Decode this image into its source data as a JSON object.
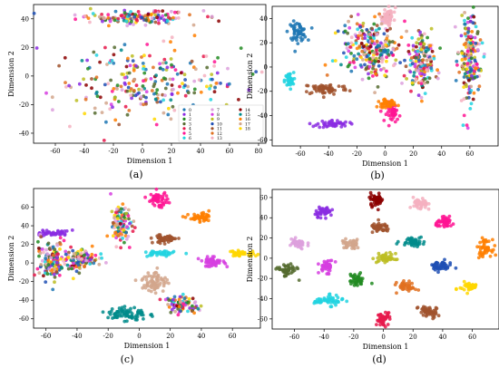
{
  "chart_data": [
    {
      "type": "scatter",
      "panel_label": "(a)",
      "xlabel": "Dimension 1",
      "ylabel": "Dimension 2",
      "xlim": [
        -75,
        85
      ],
      "ylim": [
        -47,
        50
      ],
      "xticks": [
        -60,
        -40,
        -20,
        0,
        20,
        40,
        60,
        80
      ],
      "yticks": [
        -40,
        -20,
        0,
        20,
        40
      ],
      "legend": {
        "placement": "bottom-right",
        "entries": [
          "0",
          "1",
          "2",
          "3",
          "4",
          "5",
          "6",
          "7",
          "8",
          "9",
          "10",
          "11",
          "12",
          "13",
          "14",
          "15",
          "16",
          "17",
          "18"
        ]
      },
      "clusters": [
        {
          "label": "band-top",
          "cx": -5,
          "cy": 41,
          "sx": 25,
          "sy": 3,
          "mixed": true
        },
        {
          "label": "main-mass",
          "cx": 5,
          "cy": -5,
          "sx": 38,
          "sy": 15,
          "mixed": true
        }
      ]
    },
    {
      "type": "scatter",
      "panel_label": "(b)",
      "xlabel": "Dimension 1",
      "ylabel": "Dimension 2",
      "xlim": [
        -80,
        80
      ],
      "ylim": [
        -65,
        50
      ],
      "xticks": [
        -60,
        -40,
        -20,
        0,
        20,
        40,
        60
      ],
      "yticks": [
        -60,
        -40,
        -20,
        0,
        20,
        40
      ],
      "clusters": [
        {
          "class": 0,
          "cx": -62,
          "cy": 29,
          "sx": 4,
          "sy": 5
        },
        {
          "class": 6,
          "cx": -68,
          "cy": -11,
          "sx": 2,
          "sy": 4
        },
        {
          "class": 11,
          "cx": -42,
          "cy": -18,
          "sx": 10,
          "sy": 3
        },
        {
          "class": 1,
          "cx": -37,
          "cy": -47,
          "sx": 7,
          "sy": 2
        },
        {
          "class": 9,
          "cx": -10,
          "cy": 15,
          "sx": 12,
          "sy": 15,
          "mixed": true
        },
        {
          "class": 5,
          "cx": 6,
          "cy": -37,
          "sx": 3,
          "sy": 5
        },
        {
          "class": 16,
          "cx": 1,
          "cy": -30,
          "sx": 4,
          "sy": 2
        },
        {
          "class": 12,
          "cx": 25,
          "cy": 4,
          "sx": 6,
          "sy": 15,
          "mixed": true
        },
        {
          "class": 10,
          "cx": 60,
          "cy": 5,
          "sx": 5,
          "sy": 22,
          "mixed": true
        },
        {
          "class": 13,
          "cx": 2,
          "cy": 42,
          "sx": 3,
          "sy": 5
        }
      ]
    },
    {
      "type": "scatter",
      "panel_label": "(c)",
      "xlabel": "Dimension 1",
      "ylabel": "Dimension 2",
      "xlim": [
        -68,
        78
      ],
      "ylim": [
        -70,
        80
      ],
      "xticks": [
        -60,
        -40,
        -20,
        0,
        20,
        40,
        60
      ],
      "yticks": [
        -60,
        -40,
        -20,
        0,
        20,
        40,
        60
      ],
      "clusters": [
        {
          "class": 1,
          "cx": -55,
          "cy": 32,
          "sx": 6,
          "sy": 2
        },
        {
          "class": 3,
          "cx": -56,
          "cy": 4,
          "sx": 6,
          "sy": 12,
          "mixed": true
        },
        {
          "class": 9,
          "cx": -38,
          "cy": 4,
          "sx": 7,
          "sy": 7,
          "mixed": true
        },
        {
          "class": 14,
          "cx": -12,
          "cy": 40,
          "sx": 4,
          "sy": 12,
          "mixed": true
        },
        {
          "class": 5,
          "cx": 12,
          "cy": 68,
          "sx": 4,
          "sy": 5
        },
        {
          "class": 16,
          "cx": 40,
          "cy": 48,
          "sx": 5,
          "sy": 3
        },
        {
          "class": 11,
          "cx": 17,
          "cy": 26,
          "sx": 5,
          "sy": 3
        },
        {
          "class": 6,
          "cx": 13,
          "cy": 10,
          "sx": 6,
          "sy": 2
        },
        {
          "class": 8,
          "cx": 47,
          "cy": 1,
          "sx": 5,
          "sy": 3
        },
        {
          "class": 18,
          "cx": 66,
          "cy": 10,
          "sx": 6,
          "sy": 2
        },
        {
          "class": 17,
          "cx": 10,
          "cy": -20,
          "sx": 5,
          "sy": 7
        },
        {
          "class": 10,
          "cx": 28,
          "cy": -45,
          "sx": 6,
          "sy": 6,
          "mixed": true
        },
        {
          "class": 15,
          "cx": -8,
          "cy": -55,
          "sx": 8,
          "sy": 5
        }
      ]
    },
    {
      "type": "scatter",
      "panel_label": "(d)",
      "xlabel": "Dimension 1",
      "ylabel": "Dimension 2",
      "xlim": [
        -75,
        78
      ],
      "ylim": [
        -70,
        68
      ],
      "xticks": [
        -60,
        -40,
        -20,
        0,
        20,
        40,
        60
      ],
      "yticks": [
        -60,
        -40,
        -20,
        0,
        20,
        40,
        60
      ],
      "clusters": [
        {
          "class": 14,
          "cx": -5,
          "cy": 58,
          "sx": 3,
          "sy": 4
        },
        {
          "class": 13,
          "cx": 25,
          "cy": 53,
          "sx": 3,
          "sy": 4
        },
        {
          "class": 1,
          "cx": -40,
          "cy": 46,
          "sx": 4,
          "sy": 3
        },
        {
          "class": 5,
          "cx": 42,
          "cy": 35,
          "sx": 4,
          "sy": 3
        },
        {
          "class": 11,
          "cx": -2,
          "cy": 30,
          "sx": 4,
          "sy": 3
        },
        {
          "class": 7,
          "cx": -58,
          "cy": 14,
          "sx": 4,
          "sy": 3
        },
        {
          "class": 17,
          "cx": -22,
          "cy": 14,
          "sx": 4,
          "sy": 3
        },
        {
          "class": 15,
          "cx": 20,
          "cy": 17,
          "sx": 5,
          "sy": 3
        },
        {
          "class": 16,
          "cx": 68,
          "cy": 10,
          "sx": 3,
          "sy": 5
        },
        {
          "class": 9,
          "cx": 2,
          "cy": 0,
          "sx": 4,
          "sy": 3
        },
        {
          "class": 8,
          "cx": -38,
          "cy": -8,
          "sx": 3,
          "sy": 4
        },
        {
          "class": 10,
          "cx": 38,
          "cy": -8,
          "sx": 5,
          "sy": 3
        },
        {
          "class": 3,
          "cx": -65,
          "cy": -12,
          "sx": 4,
          "sy": 4
        },
        {
          "class": 2,
          "cx": -18,
          "cy": -22,
          "sx": 3,
          "sy": 4
        },
        {
          "class": 12,
          "cx": 16,
          "cy": -28,
          "sx": 4,
          "sy": 3
        },
        {
          "class": 18,
          "cx": 58,
          "cy": -28,
          "sx": 4,
          "sy": 3
        },
        {
          "class": 6,
          "cx": -37,
          "cy": -42,
          "sx": 6,
          "sy": 3
        },
        {
          "class": 11,
          "cx": 30,
          "cy": -53,
          "sx": 4,
          "sy": 4
        },
        {
          "class": 4,
          "cx": 0,
          "cy": -60,
          "sx": 3,
          "sy": 4
        }
      ]
    }
  ],
  "palette": [
    "#1f77b4",
    "#8a2be2",
    "#228b22",
    "#556b2f",
    "#e6194b",
    "#ff1493",
    "#22d4e0",
    "#dda0dd",
    "#d63ee0",
    "#bcbd22",
    "#1e4fb4",
    "#a0522d",
    "#e07020",
    "#f5b0c0",
    "#8b0000",
    "#008b8b",
    "#ff7f00",
    "#d2a68c",
    "#ffd700"
  ]
}
